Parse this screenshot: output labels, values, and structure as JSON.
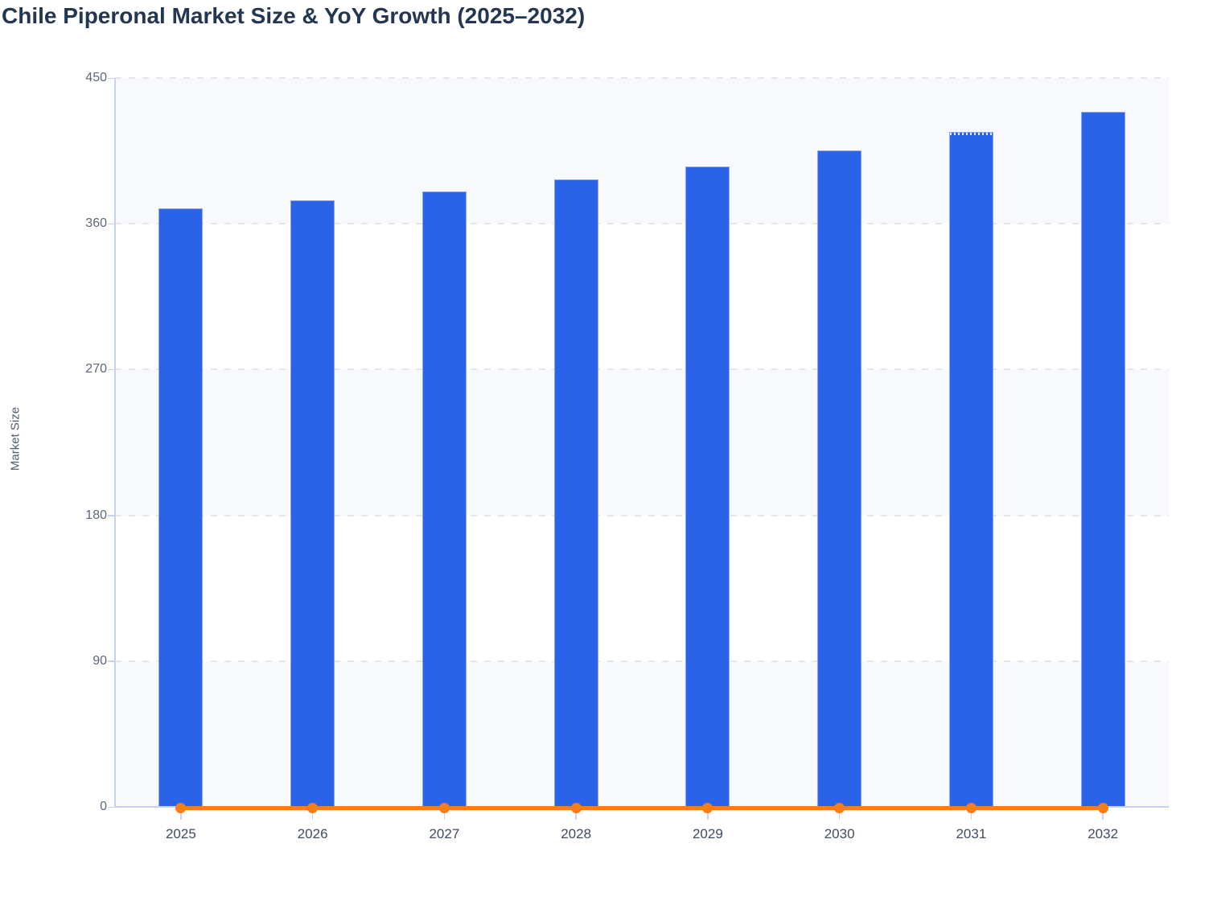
{
  "header": {
    "title": "Chile Piperonal Market Size & YoY Growth (2025–2032)"
  },
  "chart_data": {
    "type": "bar",
    "title": "Chile Piperonal Market Size & YoY Growth (2025–2032)",
    "categories": [
      "2025",
      "2026",
      "2027",
      "2028",
      "2029",
      "2030",
      "2031",
      "2032"
    ],
    "series": [
      {
        "name": "Market Size",
        "type": "bar",
        "values": [
          369.7,
          374.7,
          380.1,
          387.3,
          395.4,
          405.5,
          416.7,
          429.3
        ],
        "color": "#2b63e8"
      },
      {
        "name": "YoY Growth",
        "type": "line",
        "values": [
          0,
          0,
          0,
          0,
          0,
          0,
          0,
          0
        ],
        "color": "#f97d18",
        "note": "line renders flat at ~0 on the Market Size axis with a circular marker at every year"
      }
    ],
    "xlabel": "",
    "ylabel": "Market Size",
    "ylim": [
      0,
      450
    ],
    "yticks": [
      0,
      90,
      180,
      270,
      360,
      450
    ],
    "grid": "horizontal dashed gridlines, alternating split-area background bands",
    "legend": "none",
    "dotted_top_year": "2031",
    "colors": {
      "bar": "#2b63e8",
      "bar_edge": "#8aa7f0",
      "line": "#f97d18",
      "band_light": "#f7f9fc",
      "band_white": "#ffffff",
      "grid": "#e4e6ea",
      "axis": "#c7d3ee",
      "title_text": "#233752",
      "ytick_text": "#5d6779",
      "xtick_text": "#3f4c61",
      "ylabel_text": "#515c6e"
    }
  }
}
